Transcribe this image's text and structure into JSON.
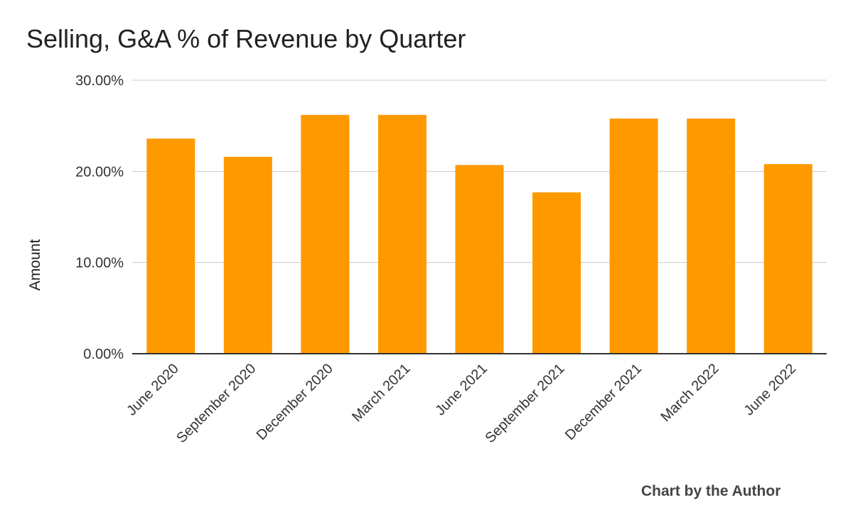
{
  "chart_data": {
    "type": "bar",
    "title": "Selling, G&A % of Revenue by Quarter",
    "xlabel": "",
    "ylabel": "Amount",
    "categories": [
      "June 2020",
      "September 2020",
      "December 2020",
      "March 2021",
      "June 2021",
      "September 2021",
      "December 2021",
      "March 2022",
      "June 2022"
    ],
    "values": [
      23.6,
      21.6,
      26.2,
      26.2,
      20.7,
      17.7,
      25.8,
      25.8,
      20.8
    ],
    "ylim": [
      0,
      30
    ],
    "yticks": [
      "0.00%",
      "10.00%",
      "20.00%",
      "30.00%"
    ],
    "ytick_values": [
      0,
      10,
      20,
      30
    ],
    "grid": true,
    "bar_color": "#ff9900",
    "legend": "none"
  },
  "footer": {
    "credit": "Chart by the Author"
  }
}
